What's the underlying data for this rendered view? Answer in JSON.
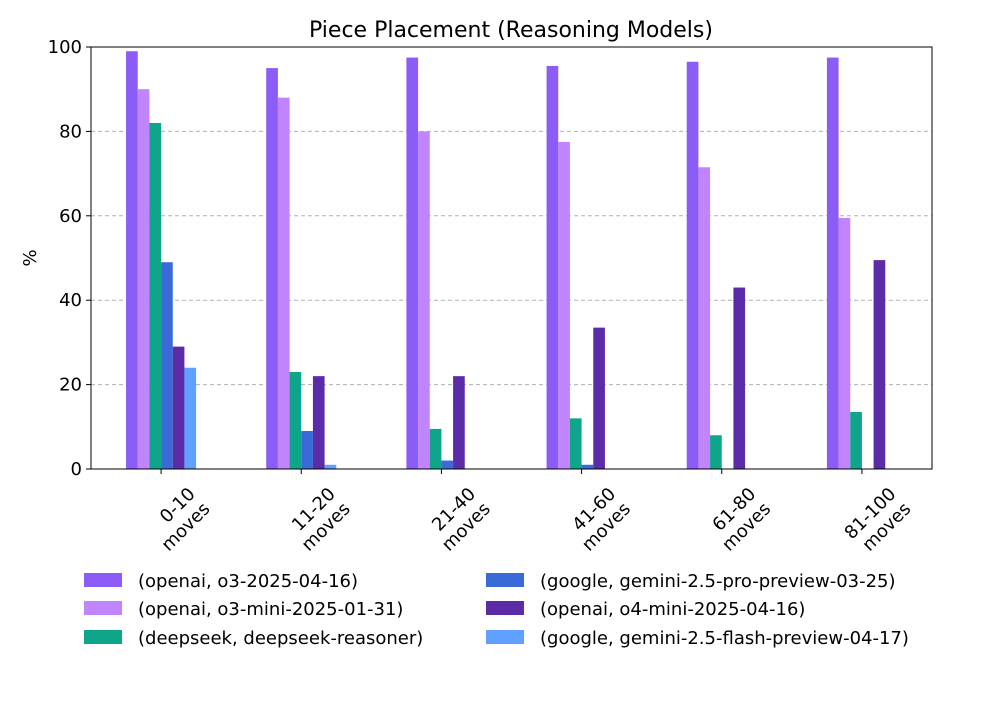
{
  "chart_data": {
    "type": "bar",
    "title": "Piece Placement (Reasoning Models)",
    "xlabel": "",
    "ylabel": "%",
    "ylim": [
      0,
      100
    ],
    "yticks": [
      0,
      20,
      40,
      60,
      80,
      100
    ],
    "grid": "horizontal dashed",
    "legend_position": "bottom",
    "categories": [
      [
        "0-10",
        "moves"
      ],
      [
        "11-20",
        "moves"
      ],
      [
        "21-40",
        "moves"
      ],
      [
        "41-60",
        "moves"
      ],
      [
        "61-80",
        "moves"
      ],
      [
        "81-100",
        "moves"
      ]
    ],
    "series": [
      {
        "name": "(openai, o3-2025-04-16)",
        "color": "#8b5cf6",
        "values": [
          99,
          95,
          97.5,
          95.5,
          96.5,
          97.5
        ]
      },
      {
        "name": "(openai, o3-mini-2025-01-31)",
        "color": "#c084fc",
        "values": [
          90,
          88,
          80,
          77.5,
          71.5,
          59.5
        ]
      },
      {
        "name": "(deepseek, deepseek-reasoner)",
        "color": "#0ea58a",
        "values": [
          82,
          23,
          9.5,
          12,
          8,
          13.5
        ]
      },
      {
        "name": "(google, gemini-2.5-pro-preview-03-25)",
        "color": "#3a6ad8",
        "values": [
          49,
          9,
          2,
          1,
          0,
          0
        ]
      },
      {
        "name": "(openai, o4-mini-2025-04-16)",
        "color": "#5b2ba8",
        "values": [
          29,
          22,
          22,
          33.5,
          43,
          49.5
        ]
      },
      {
        "name": "(google, gemini-2.5-flash-preview-04-17)",
        "color": "#60a0ff",
        "values": [
          24,
          1,
          0,
          0,
          0,
          0
        ]
      }
    ]
  }
}
